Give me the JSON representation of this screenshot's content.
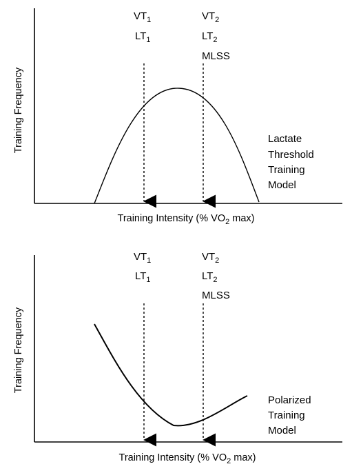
{
  "chart_data": [
    {
      "type": "line",
      "xlabel": {
        "main": "Training Intensity (% VO",
        "sub": "2",
        "tail": " max)"
      },
      "ylabel": "Training Frequency",
      "model_label": [
        "Lactate",
        "Threshold",
        "Training",
        "Model"
      ],
      "shape": "bell",
      "markers": [
        {
          "lines": [
            {
              "main": "VT",
              "sub": "1"
            },
            {
              "main": "LT",
              "sub": "1"
            }
          ]
        },
        {
          "lines": [
            {
              "main": "VT",
              "sub": "2"
            },
            {
              "main": "LT",
              "sub": "2"
            },
            {
              "main": "MLSS",
              "sub": ""
            }
          ]
        }
      ]
    },
    {
      "type": "line",
      "xlabel": {
        "main": "Training Intensity (% VO",
        "sub": "2",
        "tail": " max)"
      },
      "ylabel": "Training Frequency",
      "model_label": [
        "Polarized",
        "Training",
        "Model"
      ],
      "shape": "u-shaped",
      "markers": [
        {
          "lines": [
            {
              "main": "VT",
              "sub": "1"
            },
            {
              "main": "LT",
              "sub": "1"
            }
          ]
        },
        {
          "lines": [
            {
              "main": "VT",
              "sub": "2"
            },
            {
              "main": "LT",
              "sub": "2"
            },
            {
              "main": "MLSS",
              "sub": ""
            }
          ]
        }
      ]
    }
  ]
}
